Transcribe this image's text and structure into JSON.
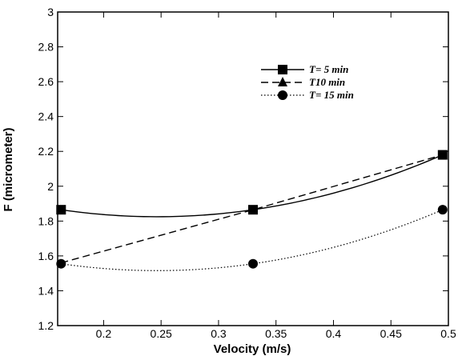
{
  "chart_data": {
    "type": "line",
    "title": "",
    "xlabel": "Velocity (m/s)",
    "ylabel": "F (micrometer)",
    "xlim": [
      0.16,
      0.5
    ],
    "ylim": [
      1.2,
      3
    ],
    "x_ticks": [
      0.2,
      0.25,
      0.3,
      0.35,
      0.4,
      0.45,
      0.5
    ],
    "x_tick_labels": [
      "0.2",
      "0.25",
      "0.3",
      "0.35",
      "0.4",
      "0.45",
      "0.5"
    ],
    "y_ticks": [
      1.2,
      1.4,
      1.6,
      1.8,
      2,
      2.2,
      2.4,
      2.6,
      2.8,
      3
    ],
    "y_tick_labels": [
      "1.2",
      "1.4",
      "1.6",
      "1.8",
      "2",
      "2.2",
      "2.4",
      "2.6",
      "2.8",
      "3"
    ],
    "grid": false,
    "legend_position": "top-right",
    "series": [
      {
        "name": "T= 5 min",
        "marker": "square",
        "line_style": "solid",
        "color": "#000000",
        "x": [
          0.163,
          0.33,
          0.495
        ],
        "y": [
          1.865,
          1.865,
          2.18
        ]
      },
      {
        "name": "T10 min",
        "marker": "triangle",
        "line_style": "dashed",
        "color": "#000000",
        "x": [
          0.163,
          0.33,
          0.495
        ],
        "y": [
          1.56,
          1.865,
          2.18
        ]
      },
      {
        "name": "T= 15 min",
        "marker": "circle",
        "line_style": "dotted",
        "color": "#000000",
        "x": [
          0.163,
          0.33,
          0.495
        ],
        "y": [
          1.555,
          1.555,
          1.865
        ]
      }
    ]
  }
}
